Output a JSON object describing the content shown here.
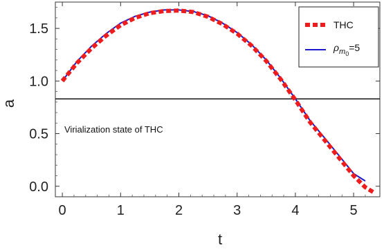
{
  "chart_data": {
    "type": "line",
    "xlabel": "t",
    "ylabel": "a",
    "xlim": [
      -0.12,
      5.45
    ],
    "ylim": [
      -0.1,
      1.75
    ],
    "xticks": [
      0,
      1,
      2,
      3,
      4,
      5
    ],
    "yticks": [
      0.0,
      0.5,
      1.0,
      1.5
    ],
    "ytick_labels": [
      "0.0",
      "0.5",
      "1.0",
      "1.5"
    ],
    "frame": "box",
    "grid": false,
    "legend_position": "top-right",
    "series": [
      {
        "name": "THC",
        "style": "dashed-thick",
        "color": "#ee1c1c",
        "x": [
          0,
          0.25,
          0.5,
          0.75,
          1.0,
          1.25,
          1.5,
          1.75,
          2.0,
          2.25,
          2.5,
          2.75,
          3.0,
          3.25,
          3.5,
          3.75,
          4.0,
          4.25,
          4.5,
          4.75,
          5.0,
          5.2,
          5.35
        ],
        "y": [
          1.0,
          1.17,
          1.31,
          1.43,
          1.53,
          1.6,
          1.645,
          1.665,
          1.67,
          1.655,
          1.61,
          1.54,
          1.45,
          1.335,
          1.19,
          1.015,
          0.82,
          0.61,
          0.44,
          0.27,
          0.1,
          -0.01,
          -0.06
        ]
      },
      {
        "name": "ρ_m0=5",
        "legend_base": "ρ",
        "legend_sub": "m",
        "legend_subsub": "0",
        "legend_suffix": "=5",
        "style": "solid",
        "color": "#1a1acc",
        "x": [
          0,
          0.25,
          0.5,
          0.75,
          1.0,
          1.25,
          1.5,
          1.75,
          2.0,
          2.25,
          2.5,
          2.75,
          3.0,
          3.25,
          3.5,
          3.75,
          4.0,
          4.25,
          4.5,
          4.75,
          5.0,
          5.2
        ],
        "y": [
          1.0,
          1.185,
          1.33,
          1.45,
          1.55,
          1.615,
          1.655,
          1.675,
          1.675,
          1.66,
          1.62,
          1.55,
          1.46,
          1.345,
          1.2,
          1.025,
          0.83,
          0.625,
          0.46,
          0.29,
          0.12,
          0.05
        ]
      }
    ],
    "reference_line": {
      "y": 0.83,
      "color": "#111111",
      "label": "Virialization state of THC"
    }
  }
}
